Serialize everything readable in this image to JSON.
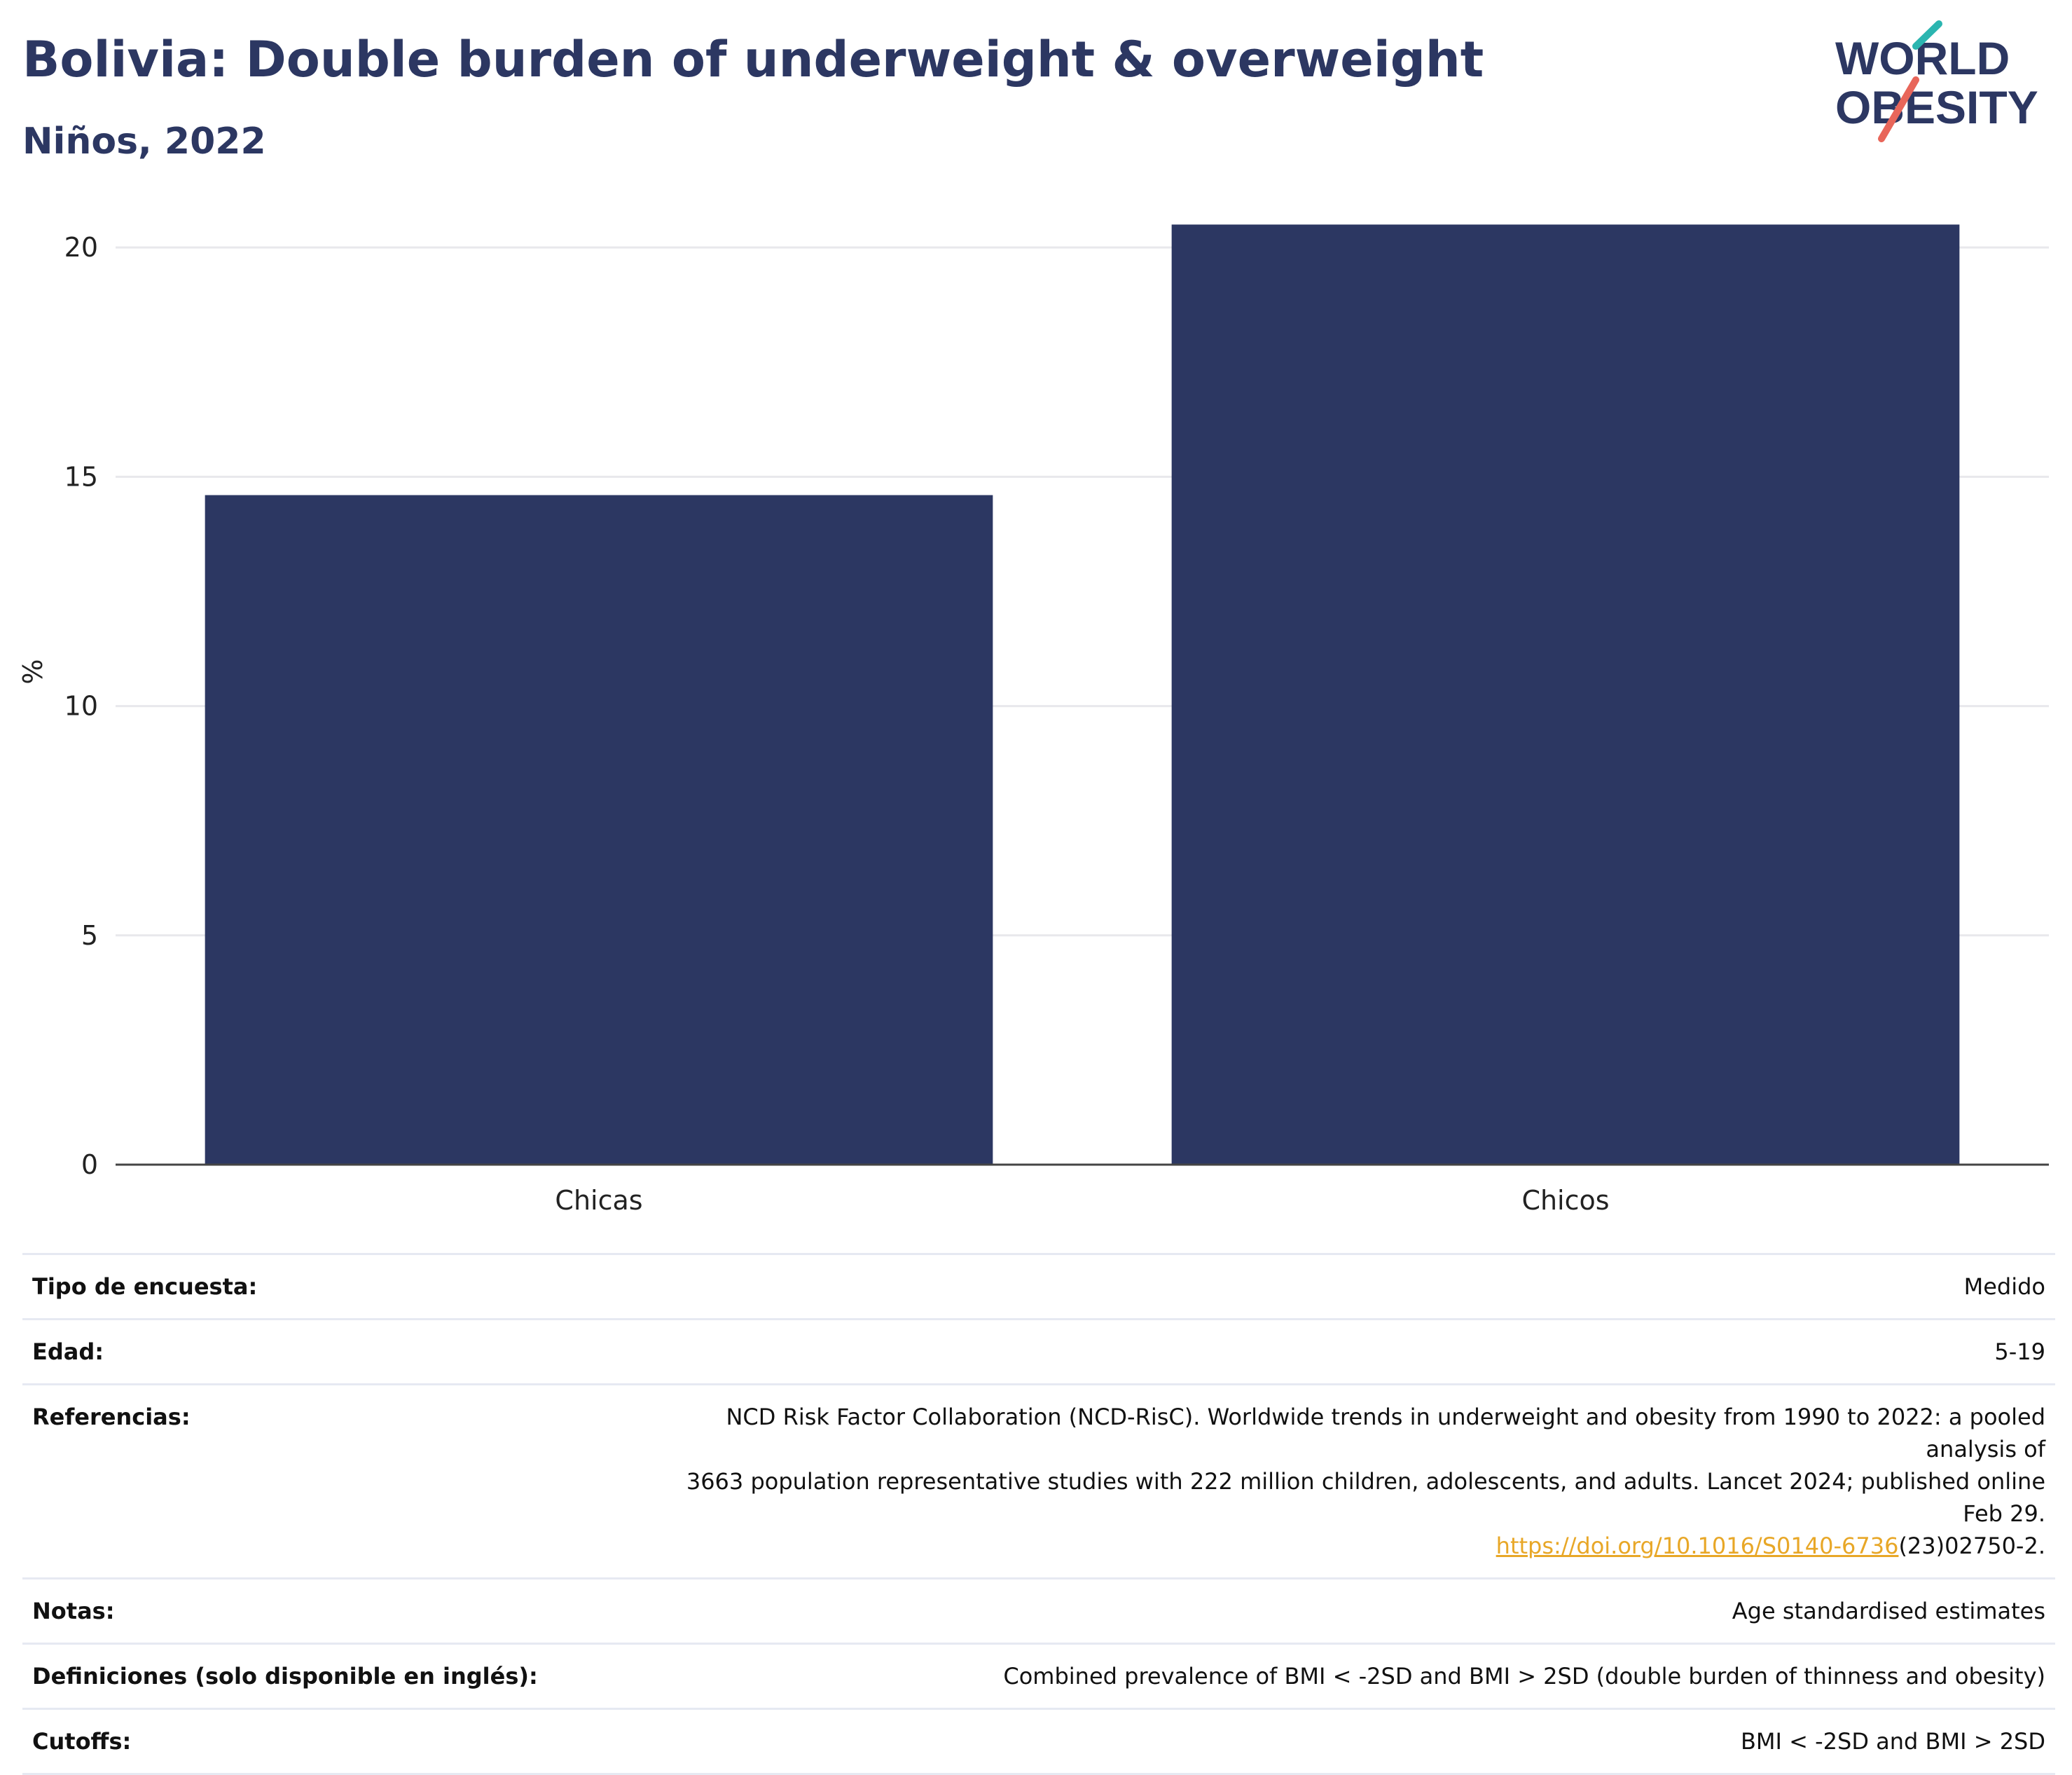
{
  "header": {
    "title": "Bolivia: Double burden of underweight & overweight",
    "subtitle": "Niños, 2022"
  },
  "logo": {
    "line1": "WORLD",
    "line2": "OBESITY",
    "colors": {
      "text": "#2c3762",
      "slash_top": "#2bb5b0",
      "slash_bottom": "#e8665a"
    }
  },
  "chart_data": {
    "type": "bar",
    "categories": [
      "Chicas",
      "Chicos"
    ],
    "values": [
      14.6,
      20.5
    ],
    "ylabel": "%",
    "xlabel": "",
    "ylim": [
      0,
      21.5
    ],
    "yticks": [
      0,
      5,
      10,
      15,
      20
    ],
    "grid": true,
    "bar_color": "#2c3762",
    "legend": "none"
  },
  "metadata": {
    "survey_type": {
      "label": "Tipo de encuesta:",
      "value": "Medido"
    },
    "age": {
      "label": "Edad:",
      "value": "5-19"
    },
    "references": {
      "label": "Referencias:",
      "text_line1": "NCD Risk Factor Collaboration (NCD-RisC). Worldwide trends in underweight and obesity from 1990 to 2022: a pooled analysis of",
      "text_line2": "3663 population representative studies with 222 million children, adolescents, and adults. Lancet 2024; published online Feb 29.",
      "link_text": "https://doi.org/10.1016/S0140-6736",
      "link_suffix": "(23)02750-2.",
      "link_color": "#e8a727"
    },
    "notes": {
      "label": "Notas:",
      "value": "Age standardised estimates"
    },
    "definitions": {
      "label": "Definiciones (solo disponible en inglés):",
      "value": "Combined prevalence of BMI < -2SD and BMI > 2SD (double burden of thinness and obesity)"
    },
    "cutoffs": {
      "label": "Cutoffs:",
      "value": "BMI < -2SD and BMI > 2SD"
    }
  }
}
